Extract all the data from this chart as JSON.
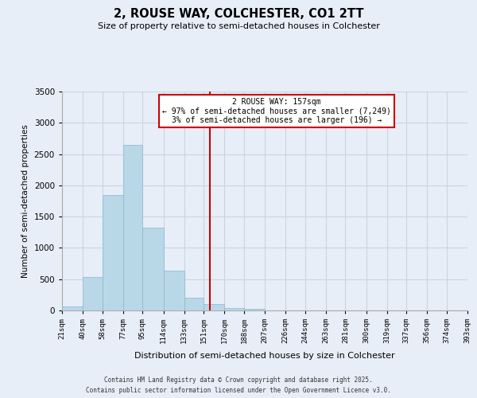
{
  "title": "2, ROUSE WAY, COLCHESTER, CO1 2TT",
  "subtitle": "Size of property relative to semi-detached houses in Colchester",
  "xlabel": "Distribution of semi-detached houses by size in Colchester",
  "ylabel": "Number of semi-detached properties",
  "bin_edges": [
    21,
    40,
    58,
    77,
    95,
    114,
    133,
    151,
    170,
    188,
    207,
    226,
    244,
    263,
    281,
    300,
    319,
    337,
    356,
    374,
    393
  ],
  "counts": [
    60,
    530,
    1850,
    2650,
    1320,
    640,
    200,
    105,
    40,
    20,
    5,
    2,
    1,
    0,
    0,
    0,
    0,
    0,
    0,
    0
  ],
  "bar_color": "#b8d8e8",
  "bar_edge_color": "#8ab8cc",
  "property_size": 157,
  "vline_color": "#cc0000",
  "annotation_title": "2 ROUSE WAY: 157sqm",
  "annotation_line1": "← 97% of semi-detached houses are smaller (7,249)",
  "annotation_line2": "3% of semi-detached houses are larger (196) →",
  "annotation_box_color": "#cc0000",
  "annotation_bg": "#ffffff",
  "ylim": [
    0,
    3500
  ],
  "yticks": [
    0,
    500,
    1000,
    1500,
    2000,
    2500,
    3000,
    3500
  ],
  "tick_labels": [
    "21sqm",
    "40sqm",
    "58sqm",
    "77sqm",
    "95sqm",
    "114sqm",
    "133sqm",
    "151sqm",
    "170sqm",
    "188sqm",
    "207sqm",
    "226sqm",
    "244sqm",
    "263sqm",
    "281sqm",
    "300sqm",
    "319sqm",
    "337sqm",
    "356sqm",
    "374sqm",
    "393sqm"
  ],
  "footnote1": "Contains HM Land Registry data © Crown copyright and database right 2025.",
  "footnote2": "Contains public sector information licensed under the Open Government Licence v3.0.",
  "bg_color": "#e8eef8",
  "grid_color": "#c8d4e4"
}
